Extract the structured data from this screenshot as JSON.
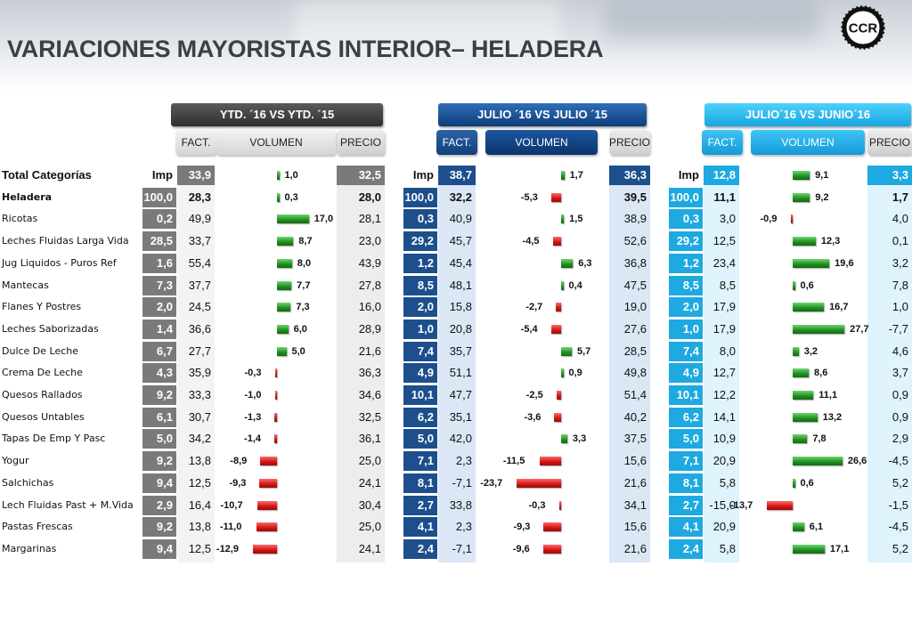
{
  "title": "VARIACIONES MAYORISTAS INTERIOR– HELADERA",
  "logo_text": "CCR",
  "colors": {
    "positive": "#1f8e1f",
    "negative": "#d01414",
    "navy": "#0f3d7a",
    "sky": "#16a6df"
  },
  "chart_data": {
    "type": "table",
    "periods": [
      {
        "header": "YTD. ´16 VS YTD. ´15",
        "fact": "FACT.",
        "volumen": "VOLUMEN",
        "precio": "PRECIO"
      },
      {
        "header": "JULIO ´16 VS  JULIO ´15",
        "fact": "FACT.",
        "volumen": "VOLUMEN",
        "precio": "PRECIO"
      },
      {
        "header": "JULIO´16 VS JUNIO´16",
        "fact": "FACT.",
        "volumen": "VOLUMEN",
        "precio": "PRECIO"
      }
    ],
    "imp_label": "Imp",
    "rows": [
      {
        "category": "Total  Categorías",
        "cells": [
          {
            "imp": "",
            "fact": "33,9",
            "vol": 1.0,
            "vol_label": "1,0",
            "precio": "32,5"
          },
          {
            "imp": "",
            "fact": "38,7",
            "vol": 1.7,
            "vol_label": "1,7",
            "precio": "36,3"
          },
          {
            "imp": "",
            "fact": "12,8",
            "vol": 9.1,
            "vol_label": "9,1",
            "precio": "3,3"
          }
        ]
      },
      {
        "category": "Heladera",
        "cells": [
          {
            "imp": "100,0",
            "fact": "28,3",
            "vol": 0.3,
            "vol_label": "0,3",
            "precio": "28,0"
          },
          {
            "imp": "100,0",
            "fact": "32,2",
            "vol": -5.3,
            "vol_label": "-5,3",
            "precio": "39,5"
          },
          {
            "imp": "100,0",
            "fact": "11,1",
            "vol": 9.2,
            "vol_label": "9,2",
            "precio": "1,7"
          }
        ]
      },
      {
        "category": "Ricotas",
        "cells": [
          {
            "imp": "0,2",
            "fact": "49,9",
            "vol": 17.0,
            "vol_label": "17,0",
            "precio": "28,1"
          },
          {
            "imp": "0,3",
            "fact": "40,9",
            "vol": 1.5,
            "vol_label": "1,5",
            "precio": "38,9"
          },
          {
            "imp": "0,3",
            "fact": "3,0",
            "vol": -0.9,
            "vol_label": "-0,9",
            "precio": "4,0"
          }
        ]
      },
      {
        "category": "Leches Fluidas Larga Vida",
        "cells": [
          {
            "imp": "28,5",
            "fact": "33,7",
            "vol": 8.7,
            "vol_label": "8,7",
            "precio": "23,0"
          },
          {
            "imp": "29,2",
            "fact": "45,7",
            "vol": -4.5,
            "vol_label": "-4,5",
            "precio": "52,6"
          },
          {
            "imp": "29,2",
            "fact": "12,5",
            "vol": 12.3,
            "vol_label": "12,3",
            "precio": "0,1"
          }
        ]
      },
      {
        "category": "Jug Liquidos - Puros Ref",
        "cells": [
          {
            "imp": "1,6",
            "fact": "55,4",
            "vol": 8.0,
            "vol_label": "8,0",
            "precio": "43,9"
          },
          {
            "imp": "1,2",
            "fact": "45,4",
            "vol": 6.3,
            "vol_label": "6,3",
            "precio": "36,8"
          },
          {
            "imp": "1,2",
            "fact": "23,4",
            "vol": 19.6,
            "vol_label": "19,6",
            "precio": "3,2"
          }
        ]
      },
      {
        "category": "Mantecas",
        "cells": [
          {
            "imp": "7,3",
            "fact": "37,7",
            "vol": 7.7,
            "vol_label": "7,7",
            "precio": "27,8"
          },
          {
            "imp": "8,5",
            "fact": "48,1",
            "vol": 0.4,
            "vol_label": "0,4",
            "precio": "47,5"
          },
          {
            "imp": "8,5",
            "fact": "8,5",
            "vol": 0.6,
            "vol_label": "0,6",
            "precio": "7,8"
          }
        ]
      },
      {
        "category": "Flanes Y Postres",
        "cells": [
          {
            "imp": "2,0",
            "fact": "24,5",
            "vol": 7.3,
            "vol_label": "7,3",
            "precio": "16,0"
          },
          {
            "imp": "2,0",
            "fact": "15,8",
            "vol": -2.7,
            "vol_label": "-2,7",
            "precio": "19,0"
          },
          {
            "imp": "2,0",
            "fact": "17,9",
            "vol": 16.7,
            "vol_label": "16,7",
            "precio": "1,0"
          }
        ]
      },
      {
        "category": "Leches Saborizadas",
        "cells": [
          {
            "imp": "1,4",
            "fact": "36,6",
            "vol": 6.0,
            "vol_label": "6,0",
            "precio": "28,9"
          },
          {
            "imp": "1,0",
            "fact": "20,8",
            "vol": -5.4,
            "vol_label": "-5,4",
            "precio": "27,6"
          },
          {
            "imp": "1,0",
            "fact": "17,9",
            "vol": 27.7,
            "vol_label": "27,7",
            "precio": "-7,7"
          }
        ]
      },
      {
        "category": "Dulce De Leche",
        "cells": [
          {
            "imp": "6,7",
            "fact": "27,7",
            "vol": 5.0,
            "vol_label": "5,0",
            "precio": "21,6"
          },
          {
            "imp": "7,4",
            "fact": "35,7",
            "vol": 5.7,
            "vol_label": "5,7",
            "precio": "28,5"
          },
          {
            "imp": "7,4",
            "fact": "8,0",
            "vol": 3.2,
            "vol_label": "3,2",
            "precio": "4,6"
          }
        ]
      },
      {
        "category": "Crema De Leche",
        "cells": [
          {
            "imp": "4,3",
            "fact": "35,9",
            "vol": -0.3,
            "vol_label": "-0,3",
            "precio": "36,3"
          },
          {
            "imp": "4,9",
            "fact": "51,1",
            "vol": 0.9,
            "vol_label": "0,9",
            "precio": "49,8"
          },
          {
            "imp": "4,9",
            "fact": "12,7",
            "vol": 8.6,
            "vol_label": "8,6",
            "precio": "3,7"
          }
        ]
      },
      {
        "category": "Quesos Rallados",
        "cells": [
          {
            "imp": "9,2",
            "fact": "33,3",
            "vol": -1.0,
            "vol_label": "-1,0",
            "precio": "34,6"
          },
          {
            "imp": "10,1",
            "fact": "47,7",
            "vol": -2.5,
            "vol_label": "-2,5",
            "precio": "51,4"
          },
          {
            "imp": "10,1",
            "fact": "12,2",
            "vol": 11.1,
            "vol_label": "11,1",
            "precio": "0,9"
          }
        ]
      },
      {
        "category": "Quesos Untables",
        "cells": [
          {
            "imp": "6,1",
            "fact": "30,7",
            "vol": -1.3,
            "vol_label": "-1,3",
            "precio": "32,5"
          },
          {
            "imp": "6,2",
            "fact": "35,1",
            "vol": -3.6,
            "vol_label": "-3,6",
            "precio": "40,2"
          },
          {
            "imp": "6,2",
            "fact": "14,1",
            "vol": 13.2,
            "vol_label": "13,2",
            "precio": "0,9"
          }
        ]
      },
      {
        "category": "Tapas De Emp Y Pasc",
        "cells": [
          {
            "imp": "5,0",
            "fact": "34,2",
            "vol": -1.4,
            "vol_label": "-1,4",
            "precio": "36,1"
          },
          {
            "imp": "5,0",
            "fact": "42,0",
            "vol": 3.3,
            "vol_label": "3,3",
            "precio": "37,5"
          },
          {
            "imp": "5,0",
            "fact": "10,9",
            "vol": 7.8,
            "vol_label": "7,8",
            "precio": "2,9"
          }
        ]
      },
      {
        "category": "Yogur",
        "cells": [
          {
            "imp": "9,2",
            "fact": "13,8",
            "vol": -8.9,
            "vol_label": "-8,9",
            "precio": "25,0"
          },
          {
            "imp": "7,1",
            "fact": "2,3",
            "vol": -11.5,
            "vol_label": "-11,5",
            "precio": "15,6"
          },
          {
            "imp": "7,1",
            "fact": "20,9",
            "vol": 26.6,
            "vol_label": "26,6",
            "precio": "-4,5"
          }
        ]
      },
      {
        "category": "Salchichas",
        "cells": [
          {
            "imp": "9,4",
            "fact": "12,5",
            "vol": -9.3,
            "vol_label": "-9,3",
            "precio": "24,1"
          },
          {
            "imp": "8,1",
            "fact": "-7,1",
            "vol": -23.7,
            "vol_label": "-23,7",
            "precio": "21,6"
          },
          {
            "imp": "8,1",
            "fact": "5,8",
            "vol": 0.6,
            "vol_label": "0,6",
            "precio": "5,2"
          }
        ]
      },
      {
        "category": "Lech Fluidas Past + M.Vida",
        "cells": [
          {
            "imp": "2,9",
            "fact": "16,4",
            "vol": -10.7,
            "vol_label": "-10,7",
            "precio": "30,4"
          },
          {
            "imp": "2,7",
            "fact": "33,8",
            "vol": -0.3,
            "vol_label": "-0,3",
            "precio": "34,1"
          },
          {
            "imp": "2,7",
            "fact": "-15,0",
            "vol": -13.7,
            "vol_label": "-13,7",
            "precio": "-1,5"
          }
        ]
      },
      {
        "category": "Pastas Frescas",
        "cells": [
          {
            "imp": "9,2",
            "fact": "13,8",
            "vol": -11.0,
            "vol_label": "-11,0",
            "precio": "25,0"
          },
          {
            "imp": "4,1",
            "fact": "2,3",
            "vol": -9.3,
            "vol_label": "-9,3",
            "precio": "15,6"
          },
          {
            "imp": "4,1",
            "fact": "20,9",
            "vol": 6.1,
            "vol_label": "6,1",
            "precio": "-4,5"
          }
        ]
      },
      {
        "category": "Margarinas",
        "cells": [
          {
            "imp": "9,4",
            "fact": "12,5",
            "vol": -12.9,
            "vol_label": "-12,9",
            "precio": "24,1"
          },
          {
            "imp": "2,4",
            "fact": "-7,1",
            "vol": -9.6,
            "vol_label": "-9,6",
            "precio": "21,6"
          },
          {
            "imp": "2,4",
            "fact": "5,8",
            "vol": 17.1,
            "vol_label": "17,1",
            "precio": "5,2"
          }
        ]
      }
    ]
  }
}
